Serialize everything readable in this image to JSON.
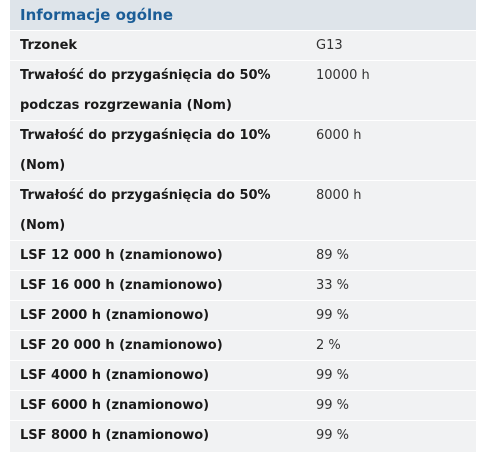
{
  "section": {
    "title": "Informacje ogólne"
  },
  "rows": [
    {
      "label": "Trzonek",
      "value": "G13"
    },
    {
      "label": "Trwałość do przygaśnięcia do 50% podczas rozgrzewania (Nom)",
      "value": "10000 h"
    },
    {
      "label": "Trwałość do przygaśnięcia do 10% (Nom)",
      "value": "6000 h"
    },
    {
      "label": "Trwałość do przygaśnięcia do 50% (Nom)",
      "value": "8000 h"
    },
    {
      "label": "LSF 12 000 h (znamionowo)",
      "value": "89 %"
    },
    {
      "label": "LSF 16 000 h (znamionowo)",
      "value": "33 %"
    },
    {
      "label": "LSF 2000 h (znamionowo)",
      "value": "99 %"
    },
    {
      "label": "LSF 20 000 h (znamionowo)",
      "value": "2 %"
    },
    {
      "label": "LSF 4000 h (znamionowo)",
      "value": "99 %"
    },
    {
      "label": "LSF 6000 h (znamionowo)",
      "value": "99 %"
    },
    {
      "label": "LSF 8000 h (znamionowo)",
      "value": "99 %"
    }
  ]
}
